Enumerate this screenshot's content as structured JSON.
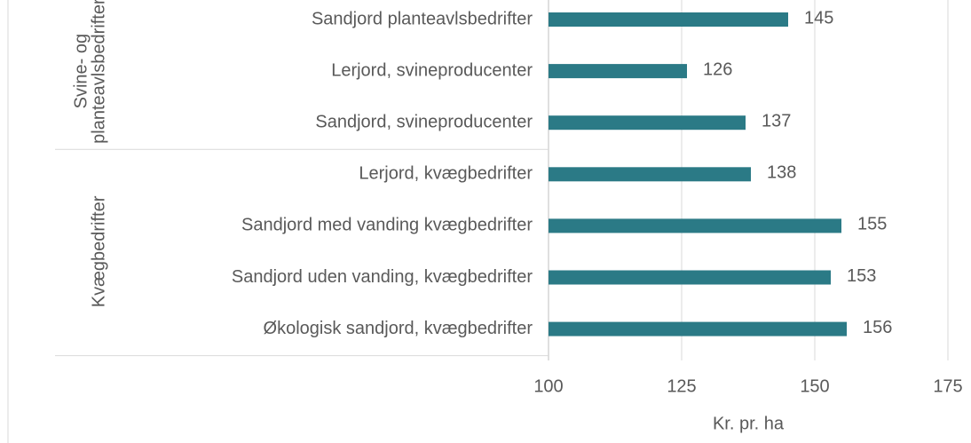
{
  "chart_data": {
    "type": "bar",
    "orientation": "horizontal",
    "groups": [
      {
        "name": [
          "Svine- og",
          "planteavlsbedrifter"
        ],
        "categories": [
          "Sandjord planteavlsbedrifter",
          "Lerjord, svineproducenter",
          "Sandjord, svineproducenter"
        ],
        "values": [
          145,
          126,
          137
        ]
      },
      {
        "name": [
          "Kvægbedrifter"
        ],
        "categories": [
          "Lerjord, kvægbedrifter",
          "Sandjord med vanding kvægbedrifter",
          "Sandjord uden vanding, kvægbedrifter",
          "Økologisk sandjord, kvægbedrifter"
        ],
        "values": [
          138,
          155,
          153,
          156
        ]
      }
    ],
    "color": "#2b7a86",
    "xlabel": "Kr. pr. ha",
    "xlim": [
      100,
      175
    ],
    "xticks": [
      100,
      125,
      150,
      175
    ],
    "grid": true
  }
}
